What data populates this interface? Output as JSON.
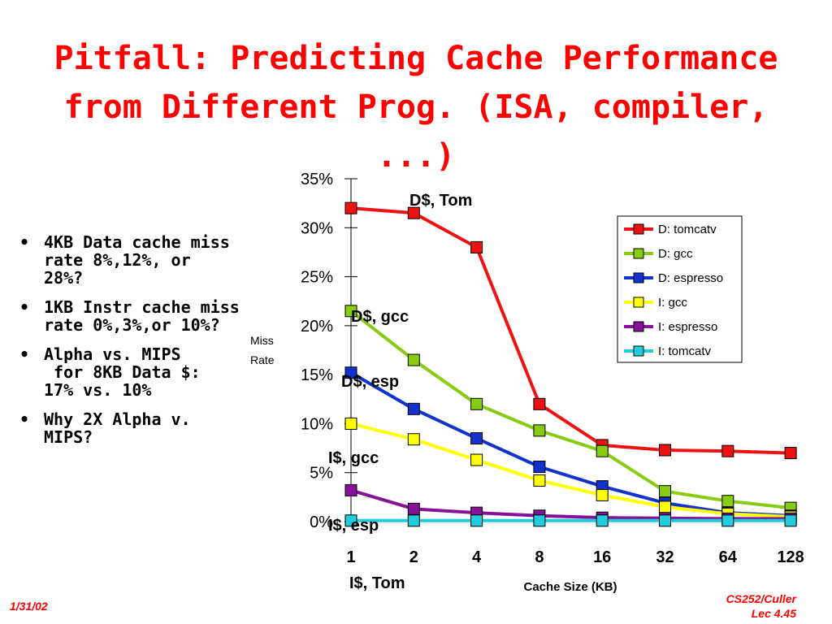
{
  "slide": {
    "title_line1": "Pitfall: Predicting Cache Performance",
    "title_line2": "from Different Prog. (ISA, compiler,",
    "title_line3": "...)",
    "bullets": [
      "4KB Data cache miss\nrate 8%,12%, or\n28%?",
      "1KB Instr cache miss\nrate 0%,3%,or 10%?",
      "Alpha vs. MIPS\n for 8KB Data $:\n17% vs. 10%",
      "Why 2X Alpha v.\nMIPS?"
    ],
    "bullet_symbol": "•",
    "footer_left": "1/31/02",
    "footer_right_line1": "CS252/Culler",
    "footer_right_line2": "Lec 4.45"
  },
  "chart_data": {
    "type": "line",
    "categories": [
      "1",
      "2",
      "4",
      "8",
      "16",
      "32",
      "64",
      "128"
    ],
    "xlabel": "Cache Size (KB)",
    "ylabel_line1": "Miss",
    "ylabel_line2": "Rate",
    "yticks": [
      "0%",
      "5%",
      "10%",
      "15%",
      "20%",
      "25%",
      "30%",
      "35%"
    ],
    "ylim": [
      0,
      35
    ],
    "grid": false,
    "legend_position": "right",
    "series": [
      {
        "name": "D: tomcatv",
        "color": "#ee1111",
        "values": [
          32,
          31.5,
          28,
          12,
          7.8,
          7.3,
          7.2,
          7.0
        ]
      },
      {
        "name": "D: gcc",
        "color": "#88cc11",
        "values": [
          21.5,
          16.5,
          12,
          9.3,
          7.2,
          3.1,
          2.1,
          1.4
        ]
      },
      {
        "name": "D: espresso",
        "color": "#1133cc",
        "values": [
          15.2,
          11.5,
          8.5,
          5.6,
          3.6,
          1.9,
          0.9,
          0.6
        ]
      },
      {
        "name": "I: gcc",
        "color": "#ffff00",
        "values": [
          10,
          8.4,
          6.3,
          4.2,
          2.7,
          1.5,
          0.8,
          0.5
        ]
      },
      {
        "name": "I: espresso",
        "color": "#881199",
        "values": [
          3.2,
          1.3,
          0.9,
          0.6,
          0.4,
          0.35,
          0.3,
          0.3
        ]
      },
      {
        "name": "I: tomcatv",
        "color": "#22ccdd",
        "values": [
          0.1,
          0.1,
          0.1,
          0.1,
          0.1,
          0.1,
          0.1,
          0.1
        ]
      }
    ],
    "annotations": [
      "D$, Tom",
      "D$, gcc",
      "D$, esp",
      "I$, gcc",
      "I$, esp",
      "I$, Tom"
    ]
  }
}
